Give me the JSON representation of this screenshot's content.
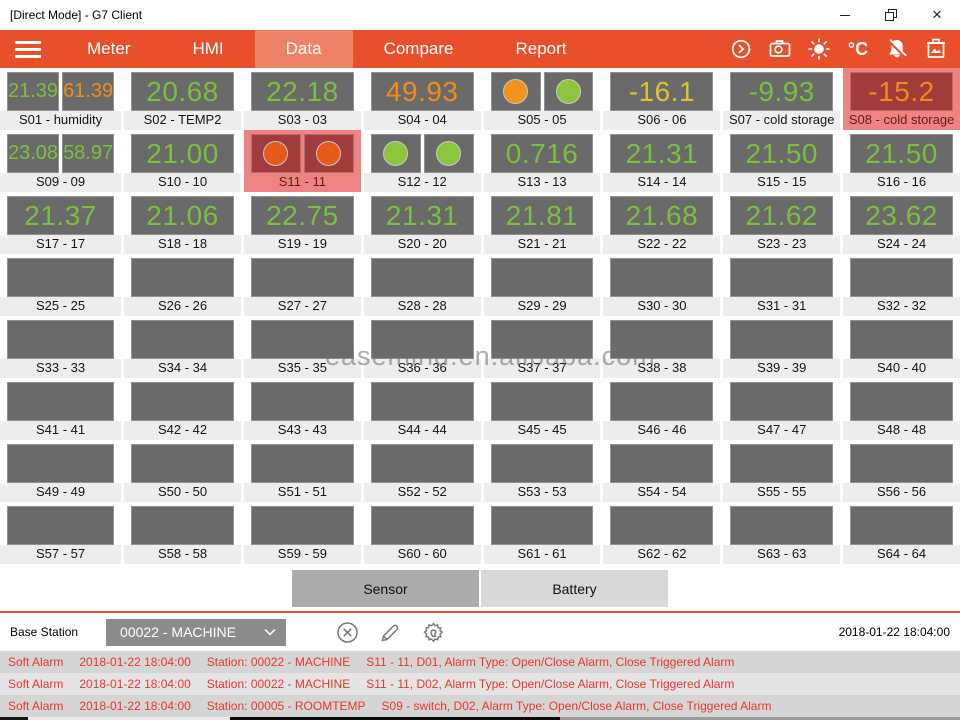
{
  "window": {
    "title": "[Direct Mode] - G7 Client"
  },
  "menu": {
    "tabs": [
      {
        "id": "meter",
        "label": "Meter",
        "active": false
      },
      {
        "id": "hmi",
        "label": "HMI",
        "active": false
      },
      {
        "id": "data",
        "label": "Data",
        "active": true
      },
      {
        "id": "compare",
        "label": "Compare",
        "active": false
      },
      {
        "id": "report",
        "label": "Report",
        "active": false
      }
    ],
    "celsius_label": "°C"
  },
  "grid": {
    "cells": [
      {
        "label": "S01 - humidity",
        "type": "dual-value",
        "values": [
          "21.39",
          "61.39"
        ],
        "value_colors": [
          "green",
          "orange"
        ]
      },
      {
        "label": "S02 - TEMP2",
        "type": "value",
        "values": [
          "20.68"
        ],
        "value_colors": [
          "green"
        ]
      },
      {
        "label": "S03 - 03",
        "type": "value",
        "values": [
          "22.18"
        ],
        "value_colors": [
          "green"
        ]
      },
      {
        "label": "S04 - 04",
        "type": "value",
        "values": [
          "49.93"
        ],
        "value_colors": [
          "orange"
        ]
      },
      {
        "label": "S05 - 05",
        "type": "dual-led",
        "leds": [
          "orange",
          "green"
        ]
      },
      {
        "label": "S06 - 06",
        "type": "value",
        "values": [
          "-16.1"
        ],
        "value_colors": [
          "yellow"
        ]
      },
      {
        "label": "S07 - cold storage",
        "type": "value",
        "values": [
          "-9.93"
        ],
        "value_colors": [
          "green"
        ]
      },
      {
        "label": "S08 - cold storage",
        "type": "value",
        "values": [
          "-15.2"
        ],
        "value_colors": [
          "orange"
        ],
        "alarm": true
      },
      {
        "label": "S09 - 09",
        "type": "dual-value",
        "values": [
          "23.08",
          "58.97"
        ],
        "value_colors": [
          "green",
          "green"
        ]
      },
      {
        "label": "S10 - 10",
        "type": "value",
        "values": [
          "21.00"
        ],
        "value_colors": [
          "green"
        ]
      },
      {
        "label": "S11 - 11",
        "type": "dual-led",
        "leds": [
          "red-orange",
          "red-orange"
        ],
        "alarm": true
      },
      {
        "label": "S12 - 12",
        "type": "dual-led",
        "leds": [
          "green",
          "green"
        ]
      },
      {
        "label": "S13 - 13",
        "type": "value",
        "values": [
          "0.716"
        ],
        "value_colors": [
          "green"
        ]
      },
      {
        "label": "S14 - 14",
        "type": "value",
        "values": [
          "21.31"
        ],
        "value_colors": [
          "green"
        ]
      },
      {
        "label": "S15 - 15",
        "type": "value",
        "values": [
          "21.50"
        ],
        "value_colors": [
          "green"
        ]
      },
      {
        "label": "S16 - 16",
        "type": "value",
        "values": [
          "21.50"
        ],
        "value_colors": [
          "green"
        ]
      },
      {
        "label": "S17 - 17",
        "type": "value",
        "values": [
          "21.37"
        ],
        "value_colors": [
          "green"
        ]
      },
      {
        "label": "S18 - 18",
        "type": "value",
        "values": [
          "21.06"
        ],
        "value_colors": [
          "green"
        ]
      },
      {
        "label": "S19 - 19",
        "type": "value",
        "values": [
          "22.75"
        ],
        "value_colors": [
          "green"
        ]
      },
      {
        "label": "S20 - 20",
        "type": "value",
        "values": [
          "21.31"
        ],
        "value_colors": [
          "green"
        ]
      },
      {
        "label": "S21 - 21",
        "type": "value",
        "values": [
          "21.81"
        ],
        "value_colors": [
          "green"
        ]
      },
      {
        "label": "S22 - 22",
        "type": "value",
        "values": [
          "21.68"
        ],
        "value_colors": [
          "green"
        ]
      },
      {
        "label": "S23 - 23",
        "type": "value",
        "values": [
          "21.62"
        ],
        "value_colors": [
          "green"
        ]
      },
      {
        "label": "S24 - 24",
        "type": "value",
        "values": [
          "23.62"
        ],
        "value_colors": [
          "green"
        ]
      },
      {
        "label": "S25 - 25",
        "type": "empty"
      },
      {
        "label": "S26 - 26",
        "type": "empty"
      },
      {
        "label": "S27 - 27",
        "type": "empty"
      },
      {
        "label": "S28 - 28",
        "type": "empty"
      },
      {
        "label": "S29 - 29",
        "type": "empty"
      },
      {
        "label": "S30 - 30",
        "type": "empty"
      },
      {
        "label": "S31 - 31",
        "type": "empty"
      },
      {
        "label": "S32 - 32",
        "type": "empty"
      },
      {
        "label": "S33 - 33",
        "type": "empty"
      },
      {
        "label": "S34 - 34",
        "type": "empty"
      },
      {
        "label": "S35 - 35",
        "type": "empty"
      },
      {
        "label": "S36 - 36",
        "type": "empty"
      },
      {
        "label": "S37 - 37",
        "type": "empty"
      },
      {
        "label": "S38 - 38",
        "type": "empty"
      },
      {
        "label": "S39 - 39",
        "type": "empty"
      },
      {
        "label": "S40 - 40",
        "type": "empty"
      },
      {
        "label": "S41 - 41",
        "type": "empty"
      },
      {
        "label": "S42 - 42",
        "type": "empty"
      },
      {
        "label": "S43 - 43",
        "type": "empty"
      },
      {
        "label": "S44 - 44",
        "type": "empty"
      },
      {
        "label": "S45 - 45",
        "type": "empty"
      },
      {
        "label": "S46 - 46",
        "type": "empty"
      },
      {
        "label": "S47 - 47",
        "type": "empty"
      },
      {
        "label": "S48 - 48",
        "type": "empty"
      },
      {
        "label": "S49 - 49",
        "type": "empty"
      },
      {
        "label": "S50 - 50",
        "type": "empty"
      },
      {
        "label": "S51 - 51",
        "type": "empty"
      },
      {
        "label": "S52 - 52",
        "type": "empty"
      },
      {
        "label": "S53 - 53",
        "type": "empty"
      },
      {
        "label": "S54 - 54",
        "type": "empty"
      },
      {
        "label": "S55 - 55",
        "type": "empty"
      },
      {
        "label": "S56 - 56",
        "type": "empty"
      },
      {
        "label": "S57 - 57",
        "type": "empty"
      },
      {
        "label": "S58 - 58",
        "type": "empty"
      },
      {
        "label": "S59 - 59",
        "type": "empty"
      },
      {
        "label": "S60 - 60",
        "type": "empty"
      },
      {
        "label": "S61 - 61",
        "type": "empty"
      },
      {
        "label": "S62 - 62",
        "type": "empty"
      },
      {
        "label": "S63 - 63",
        "type": "empty"
      },
      {
        "label": "S64 - 64",
        "type": "empty"
      }
    ]
  },
  "view_tabs": {
    "sensor_label": "Sensor",
    "battery_label": "Battery",
    "active": "sensor"
  },
  "base_station": {
    "label": "Base Station",
    "selected_option": "00022 - MACHINE",
    "timestamp": "2018-01-22 18:04:00"
  },
  "alarms": [
    {
      "severity": "Soft Alarm",
      "time": "2018-01-22 18:04:00",
      "station": "Station: 00022 - MACHINE",
      "detail": "S11 - 11, D01, Alarm Type: Open/Close Alarm, Close Triggered Alarm"
    },
    {
      "severity": "Soft Alarm",
      "time": "2018-01-22 18:04:00",
      "station": "Station: 00022 - MACHINE",
      "detail": "S11 - 11, D02, Alarm Type: Open/Close Alarm, Close Triggered Alarm"
    },
    {
      "severity": "Soft Alarm",
      "time": "2018-01-22 18:04:00",
      "station": "Station: 00005 - ROOMTEMP",
      "detail": "S09 - switch, D02, Alarm Type: Open/Close Alarm, Close Triggered Alarm"
    }
  ],
  "watermark": "easemind.en.alibaba.com",
  "colors": {
    "accent_orange": "#E8502C",
    "accent_orange_light": "#EE8266",
    "cell_gray": "#6A6A6A",
    "value_green": "#7CBE3F",
    "value_orange": "#EF8C1A",
    "value_yellow": "#DCC331",
    "alarm_cell_bg": "#A03C3C",
    "alarm_label_bg": "#EE8383",
    "led_green": "#8CC63F",
    "led_orange": "#F0941E",
    "led_red_orange": "#E85A1A",
    "alarm_text": "#E5372F"
  }
}
